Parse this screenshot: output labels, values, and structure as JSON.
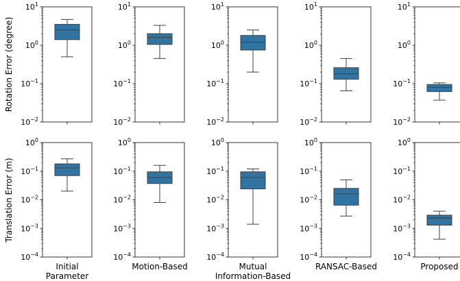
{
  "chart_data": {
    "type": "box",
    "rows": [
      {
        "ylabel": "Rotation Error (degree)",
        "yscale": "log",
        "ylim": [
          0.01,
          10
        ],
        "yticks": [
          {
            "base": "10",
            "exp": "−2",
            "value": 0.01
          },
          {
            "base": "10",
            "exp": "−1",
            "value": 0.1
          },
          {
            "base": "10",
            "exp": "0",
            "value": 1
          },
          {
            "base": "10",
            "exp": "1",
            "value": 10
          }
        ],
        "boxes": [
          {
            "whislo": 0.5,
            "q1": 1.4,
            "med": 2.5,
            "q3": 3.5,
            "whishi": 4.7
          },
          {
            "whislo": 0.45,
            "q1": 1.05,
            "med": 1.6,
            "q3": 2.0,
            "whishi": 3.3
          },
          {
            "whislo": 0.2,
            "q1": 0.75,
            "med": 1.2,
            "q3": 1.8,
            "whishi": 2.5
          },
          {
            "whislo": 0.065,
            "q1": 0.13,
            "med": 0.18,
            "q3": 0.26,
            "whishi": 0.45
          },
          {
            "whislo": 0.037,
            "q1": 0.062,
            "med": 0.08,
            "q3": 0.095,
            "whishi": 0.105
          }
        ]
      },
      {
        "ylabel": "Translation Error (m)",
        "yscale": "log",
        "ylim": [
          0.0001,
          1
        ],
        "yticks": [
          {
            "base": "10",
            "exp": "−4",
            "value": 0.0001
          },
          {
            "base": "10",
            "exp": "−3",
            "value": 0.001
          },
          {
            "base": "10",
            "exp": "−2",
            "value": 0.01
          },
          {
            "base": "10",
            "exp": "−1",
            "value": 0.1
          },
          {
            "base": "10",
            "exp": "0",
            "value": 1
          }
        ],
        "boxes": [
          {
            "whislo": 0.02,
            "q1": 0.07,
            "med": 0.13,
            "q3": 0.18,
            "whishi": 0.27
          },
          {
            "whislo": 0.008,
            "q1": 0.037,
            "med": 0.06,
            "q3": 0.095,
            "whishi": 0.16
          },
          {
            "whislo": 0.0014,
            "q1": 0.024,
            "med": 0.06,
            "q3": 0.095,
            "whishi": 0.12
          },
          {
            "whislo": 0.0027,
            "q1": 0.0065,
            "med": 0.016,
            "q3": 0.025,
            "whishi": 0.05
          },
          {
            "whislo": 0.00042,
            "q1": 0.0013,
            "med": 0.0023,
            "q3": 0.0029,
            "whishi": 0.004
          }
        ]
      }
    ],
    "categories": [
      [
        "Initial",
        "Parameter"
      ],
      [
        "Motion-Based"
      ],
      [
        "Mutual",
        "Information-Based"
      ],
      [
        "RANSAC-Based"
      ],
      [
        "Proposed"
      ]
    ],
    "box_color": "#3274a1",
    "edge_color": "#3f3f3f",
    "grid": false
  }
}
